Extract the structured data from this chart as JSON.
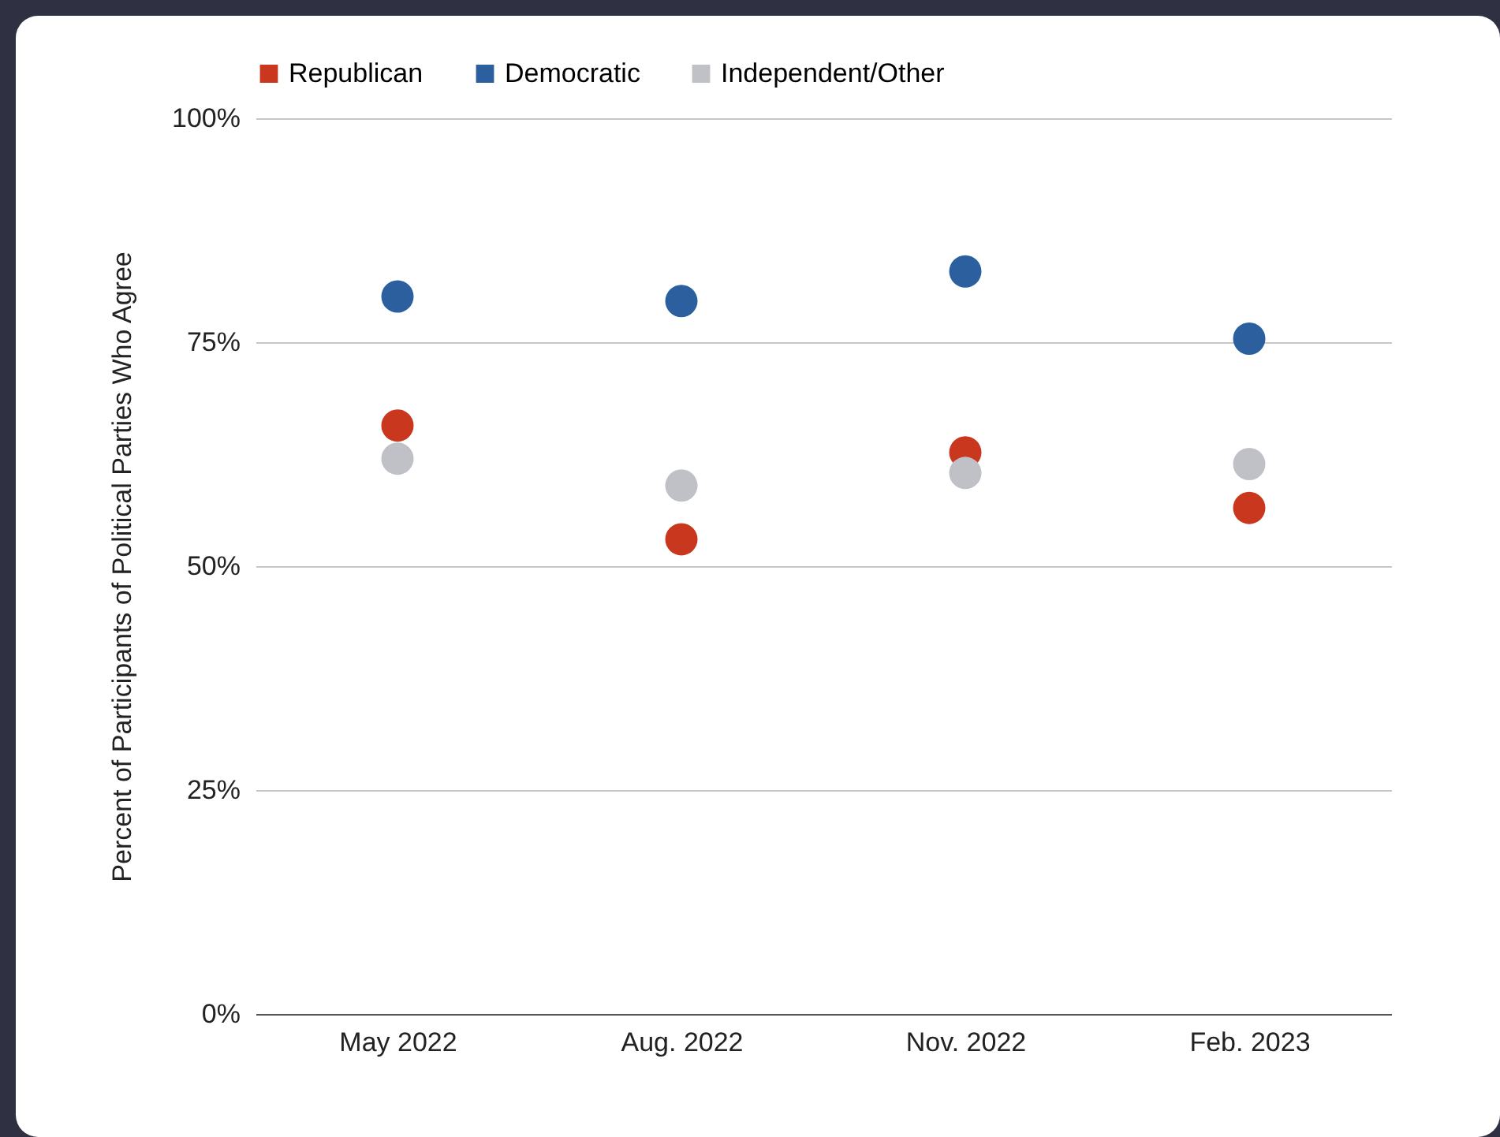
{
  "chart_data": {
    "type": "scatter",
    "ylabel": "Percent of Participants of Political Parties Who Agree",
    "categories": [
      "May 2022",
      "Aug. 2022",
      "Nov. 2022",
      "Feb. 2023"
    ],
    "series": [
      {
        "name": "Republican",
        "color": "#c9381e",
        "values": [
          65.7,
          53.0,
          62.7,
          56.5
        ]
      },
      {
        "name": "Democratic",
        "color": "#2c5f9e",
        "values": [
          80.1,
          79.6,
          82.9,
          75.4
        ]
      },
      {
        "name": "Independent/Other",
        "color": "#bfc1c6",
        "values": [
          62.0,
          59.0,
          60.4,
          61.4
        ]
      }
    ],
    "ylim": [
      0,
      100
    ],
    "yticks": [
      {
        "value": 0,
        "label": "0%"
      },
      {
        "value": 25,
        "label": "25%"
      },
      {
        "value": 50,
        "label": "50%"
      },
      {
        "value": 75,
        "label": "75%"
      },
      {
        "value": 100,
        "label": "100%"
      }
    ],
    "grid": "y",
    "legend": "top",
    "marker": "circle"
  }
}
